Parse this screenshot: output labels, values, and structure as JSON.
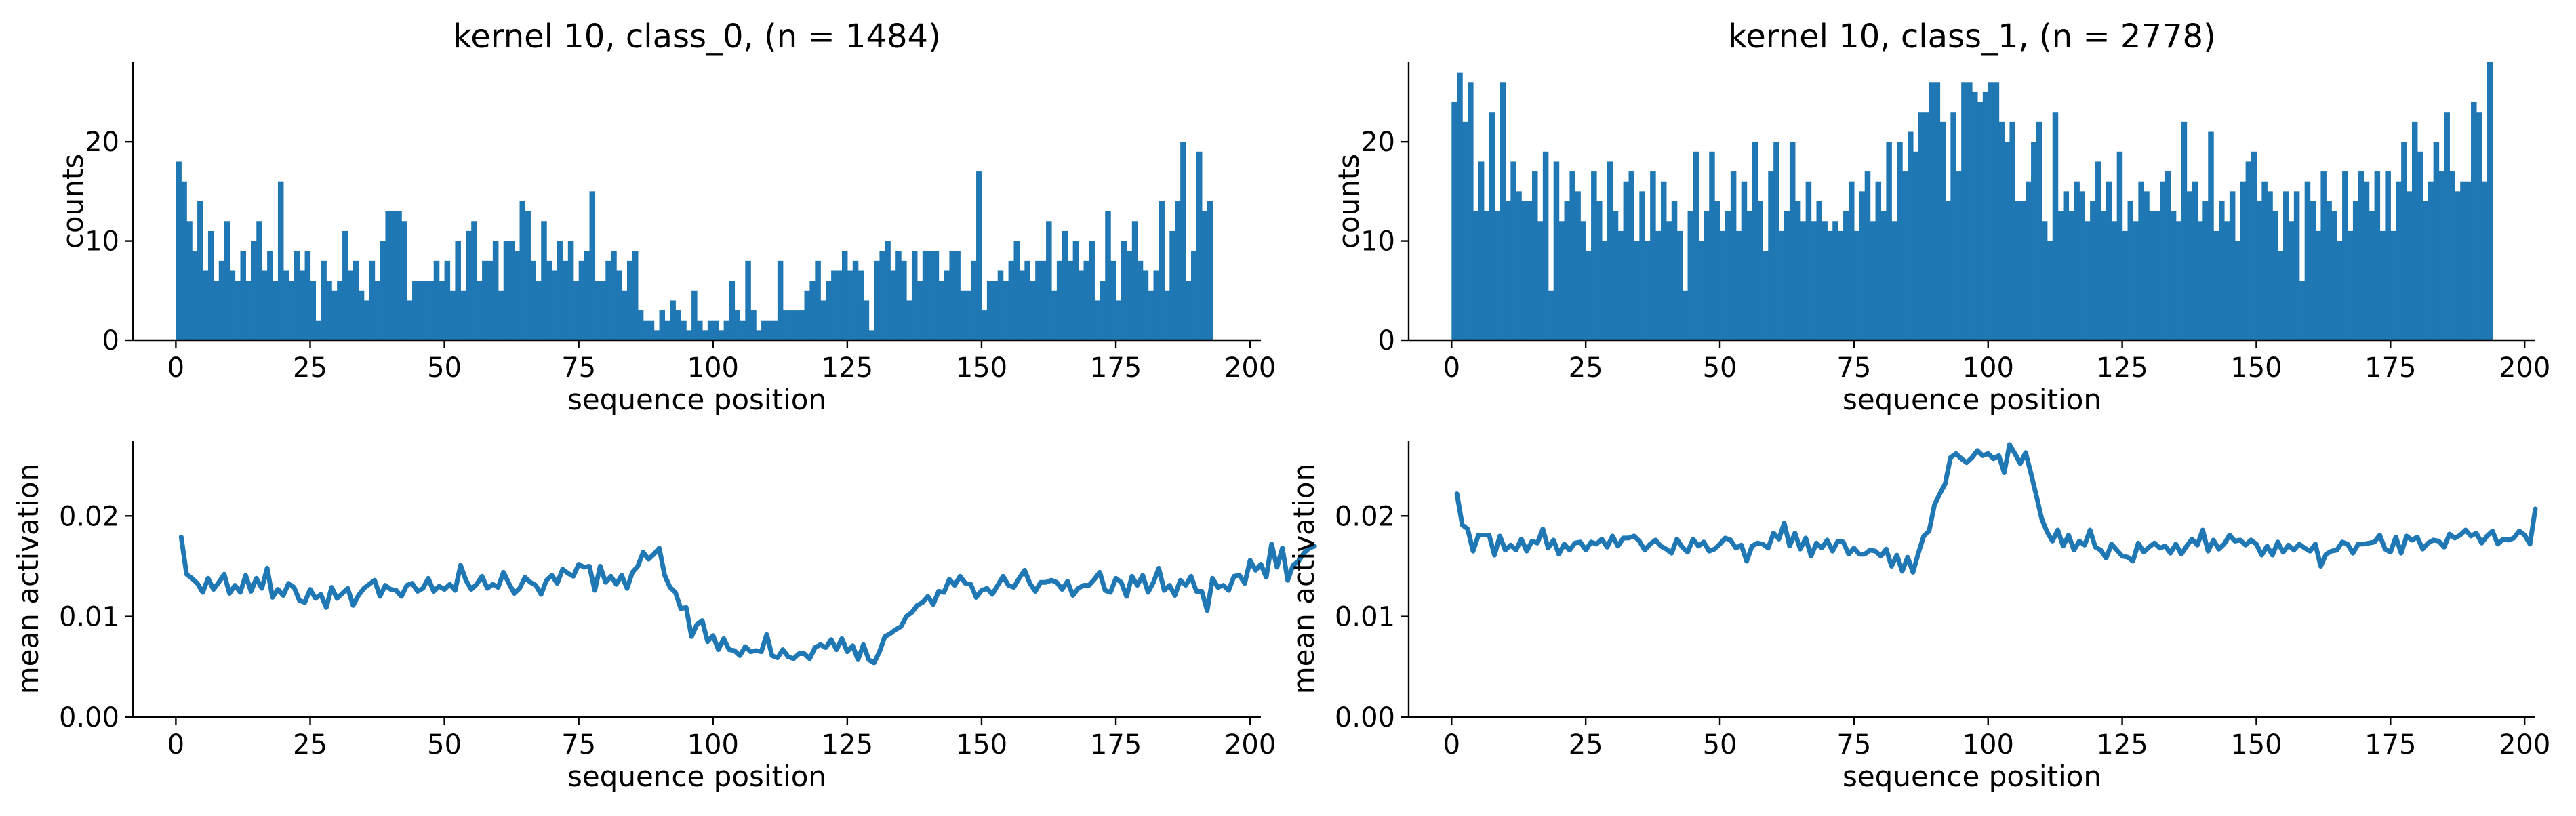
{
  "chart_data": [
    {
      "type": "bar",
      "title": "kernel 10, class_0, (n = 1484)",
      "xlabel": "sequence position",
      "ylabel": "counts",
      "xlim": [
        -8,
        202
      ],
      "ylim": [
        0,
        28
      ],
      "xticks": [
        0,
        25,
        50,
        75,
        100,
        125,
        150,
        175,
        200
      ],
      "yticks": [
        0,
        10,
        20
      ],
      "color": "#1f77b4",
      "x_start": 0,
      "values": [
        18,
        16,
        12,
        9,
        14,
        7,
        11,
        6,
        8,
        12,
        7,
        6,
        9,
        6,
        10,
        12,
        7,
        9,
        6,
        16,
        7,
        6,
        9,
        7,
        9,
        6,
        2,
        8,
        6,
        5,
        6,
        11,
        7,
        8,
        5,
        4,
        8,
        6,
        10,
        13,
        13,
        13,
        12,
        4,
        6,
        6,
        6,
        6,
        8,
        6,
        8,
        5,
        10,
        5,
        11,
        12,
        6,
        8,
        8,
        10,
        5,
        10,
        10,
        9,
        14,
        13,
        8,
        6,
        12,
        8,
        7,
        10,
        8,
        10,
        6,
        8,
        9,
        15,
        6,
        6,
        8,
        9,
        7,
        5,
        8,
        9,
        3,
        2,
        2,
        1,
        3,
        2,
        4,
        3,
        2,
        1,
        5,
        2,
        1,
        2,
        2,
        1,
        2,
        6,
        3,
        2,
        8,
        3,
        1,
        2,
        2,
        2,
        8,
        3,
        3,
        3,
        3,
        5,
        6,
        8,
        4,
        6,
        7,
        7,
        9,
        7,
        8,
        7,
        4,
        1,
        8,
        9,
        10,
        7,
        9,
        8,
        4,
        9,
        6,
        9,
        9,
        9,
        6,
        7,
        9,
        9,
        5,
        5,
        8,
        17,
        3,
        6,
        6,
        7,
        6,
        8,
        10,
        7,
        8,
        6,
        8,
        8,
        12,
        5,
        8,
        11,
        8,
        10,
        7,
        8,
        10,
        4,
        6,
        13,
        8,
        4,
        10,
        9,
        12,
        8,
        7,
        5,
        7,
        14,
        5,
        11,
        14,
        20,
        6,
        9,
        19,
        13,
        14
      ]
    },
    {
      "type": "bar",
      "title": "kernel 10, class_1, (n = 2778)",
      "xlabel": "sequence position",
      "ylabel": "counts",
      "xlim": [
        -8,
        202
      ],
      "ylim": [
        0,
        28
      ],
      "xticks": [
        0,
        25,
        50,
        75,
        100,
        125,
        150,
        175,
        200
      ],
      "yticks": [
        0,
        10,
        20
      ],
      "color": "#1f77b4",
      "x_start": 0,
      "values": [
        24,
        27,
        22,
        26,
        13,
        18,
        13,
        23,
        13,
        26,
        14,
        18,
        15,
        14,
        14,
        17,
        12,
        19,
        5,
        18,
        12,
        14,
        17,
        15,
        12,
        9,
        17,
        14,
        10,
        18,
        13,
        11,
        16,
        17,
        10,
        15,
        10,
        17,
        11,
        16,
        12,
        14,
        11,
        5,
        13,
        19,
        10,
        13,
        19,
        14,
        11,
        13,
        17,
        11,
        16,
        13,
        20,
        14,
        9,
        17,
        20,
        11,
        13,
        20,
        14,
        12,
        16,
        12,
        14,
        12,
        11,
        12,
        11,
        13,
        16,
        11,
        15,
        17,
        12,
        16,
        13,
        20,
        12,
        20,
        17,
        21,
        19,
        23,
        23,
        26,
        26,
        22,
        14,
        23,
        17,
        26,
        26,
        25,
        24,
        25,
        26,
        26,
        22,
        20,
        22,
        14,
        14,
        16,
        20,
        22,
        12,
        10,
        23,
        13,
        15,
        13,
        16,
        15,
        12,
        14,
        18,
        13,
        16,
        12,
        19,
        11,
        14,
        12,
        16,
        15,
        13,
        13,
        16,
        17,
        13,
        12,
        22,
        15,
        16,
        12,
        14,
        21,
        11,
        14,
        12,
        15,
        10,
        16,
        18,
        19,
        14,
        16,
        15,
        13,
        9,
        15,
        12,
        15,
        6,
        16,
        14,
        11,
        17,
        14,
        13,
        10,
        17,
        11,
        14,
        17,
        16,
        13,
        17,
        11,
        17,
        11,
        16,
        20,
        15,
        22,
        19,
        14,
        16,
        20,
        17,
        23,
        17,
        15,
        16,
        16,
        24,
        23,
        16,
        28
      ]
    },
    {
      "type": "line",
      "xlabel": "sequence position",
      "ylabel": "mean activation",
      "xlim": [
        -8,
        202
      ],
      "ylim": [
        0,
        0.0275
      ],
      "xticks": [
        0,
        25,
        50,
        75,
        100,
        125,
        150,
        175,
        200
      ],
      "yticks": [
        0.0,
        0.01,
        0.02
      ],
      "ytick_labels": [
        "0.00",
        "0.01",
        "0.02"
      ],
      "color": "#1f77b4",
      "x_start": 1,
      "values": [
        0.0179,
        0.0142,
        0.0138,
        0.0133,
        0.0124,
        0.0138,
        0.0127,
        0.0134,
        0.0142,
        0.0123,
        0.0131,
        0.0124,
        0.0141,
        0.0125,
        0.0138,
        0.0128,
        0.0148,
        0.0119,
        0.0127,
        0.0121,
        0.0133,
        0.0129,
        0.0116,
        0.0114,
        0.0127,
        0.0118,
        0.0122,
        0.0109,
        0.0129,
        0.0118,
        0.0123,
        0.0128,
        0.0111,
        0.0121,
        0.0128,
        0.0132,
        0.0136,
        0.012,
        0.0131,
        0.0127,
        0.0126,
        0.012,
        0.0131,
        0.0133,
        0.0125,
        0.0128,
        0.0138,
        0.0125,
        0.013,
        0.0127,
        0.0132,
        0.0126,
        0.0151,
        0.0136,
        0.0127,
        0.0132,
        0.014,
        0.0128,
        0.0132,
        0.0129,
        0.0144,
        0.0133,
        0.0123,
        0.0128,
        0.0139,
        0.0134,
        0.0131,
        0.0122,
        0.0136,
        0.0141,
        0.0133,
        0.0147,
        0.0143,
        0.014,
        0.0152,
        0.0149,
        0.015,
        0.0126,
        0.015,
        0.0134,
        0.014,
        0.0132,
        0.0141,
        0.0128,
        0.0144,
        0.015,
        0.0164,
        0.0157,
        0.0162,
        0.0168,
        0.0141,
        0.0129,
        0.0124,
        0.0108,
        0.0109,
        0.008,
        0.0092,
        0.0096,
        0.0075,
        0.0081,
        0.0067,
        0.0078,
        0.0067,
        0.0066,
        0.0061,
        0.007,
        0.0065,
        0.0066,
        0.0065,
        0.0082,
        0.0061,
        0.0059,
        0.0067,
        0.006,
        0.0058,
        0.0063,
        0.0063,
        0.0058,
        0.0069,
        0.0072,
        0.0069,
        0.0077,
        0.0067,
        0.0078,
        0.0065,
        0.0071,
        0.0057,
        0.0072,
        0.0057,
        0.0054,
        0.0065,
        0.008,
        0.0083,
        0.0087,
        0.009,
        0.01,
        0.0104,
        0.0111,
        0.0114,
        0.012,
        0.0112,
        0.0125,
        0.0124,
        0.0137,
        0.0131,
        0.014,
        0.0133,
        0.0132,
        0.0119,
        0.0126,
        0.0128,
        0.0122,
        0.0131,
        0.014,
        0.0131,
        0.0129,
        0.0138,
        0.0146,
        0.0133,
        0.0125,
        0.0134,
        0.0134,
        0.0136,
        0.0134,
        0.0127,
        0.0135,
        0.0121,
        0.0128,
        0.0131,
        0.0131,
        0.0137,
        0.0144,
        0.0126,
        0.0124,
        0.0138,
        0.0134,
        0.012,
        0.014,
        0.0131,
        0.0141,
        0.0124,
        0.0134,
        0.0148,
        0.0126,
        0.0131,
        0.0121,
        0.0136,
        0.0131,
        0.014,
        0.0125,
        0.0125,
        0.0106,
        0.0138,
        0.0129,
        0.0131,
        0.0126,
        0.014,
        0.0141,
        0.0133,
        0.0156,
        0.0146,
        0.0152,
        0.0139,
        0.0172,
        0.0149,
        0.0168,
        0.0136,
        0.0151,
        0.0155,
        0.0163,
        0.0168,
        0.017
      ]
    },
    {
      "type": "line",
      "xlabel": "sequence position",
      "ylabel": "mean activation",
      "xlim": [
        -8,
        202
      ],
      "ylim": [
        0,
        0.0275
      ],
      "xticks": [
        0,
        25,
        50,
        75,
        100,
        125,
        150,
        175,
        200
      ],
      "yticks": [
        0.0,
        0.01,
        0.02
      ],
      "ytick_labels": [
        "0.00",
        "0.01",
        "0.02"
      ],
      "color": "#1f77b4",
      "x_start": 1,
      "values": [
        0.0222,
        0.0191,
        0.0187,
        0.0165,
        0.0181,
        0.0181,
        0.0181,
        0.0161,
        0.018,
        0.0166,
        0.0171,
        0.0166,
        0.0177,
        0.0165,
        0.0175,
        0.0173,
        0.0187,
        0.0168,
        0.0176,
        0.0162,
        0.0172,
        0.0166,
        0.0173,
        0.0174,
        0.0166,
        0.0174,
        0.0172,
        0.0177,
        0.0169,
        0.018,
        0.017,
        0.0178,
        0.0178,
        0.018,
        0.0175,
        0.0166,
        0.0172,
        0.0176,
        0.017,
        0.0167,
        0.0163,
        0.0177,
        0.0169,
        0.0164,
        0.0177,
        0.017,
        0.0174,
        0.0165,
        0.0167,
        0.0172,
        0.0178,
        0.0176,
        0.0168,
        0.0171,
        0.0155,
        0.017,
        0.0173,
        0.0172,
        0.0168,
        0.0183,
        0.0177,
        0.0193,
        0.017,
        0.0183,
        0.0167,
        0.0178,
        0.016,
        0.0173,
        0.0168,
        0.0176,
        0.0165,
        0.0175,
        0.0174,
        0.0162,
        0.0168,
        0.0162,
        0.0162,
        0.0166,
        0.0165,
        0.016,
        0.0167,
        0.015,
        0.0161,
        0.0145,
        0.0159,
        0.0144,
        0.0163,
        0.018,
        0.0185,
        0.0211,
        0.0222,
        0.0232,
        0.0258,
        0.0262,
        0.0257,
        0.0253,
        0.0258,
        0.0265,
        0.026,
        0.0262,
        0.0257,
        0.026,
        0.0243,
        0.0271,
        0.0262,
        0.0252,
        0.0263,
        0.0242,
        0.022,
        0.0197,
        0.0184,
        0.0175,
        0.0186,
        0.017,
        0.0181,
        0.0166,
        0.0175,
        0.0171,
        0.0186,
        0.0169,
        0.0166,
        0.0158,
        0.0172,
        0.0166,
        0.016,
        0.0159,
        0.0155,
        0.0173,
        0.0164,
        0.0169,
        0.0173,
        0.0168,
        0.017,
        0.0163,
        0.0172,
        0.0162,
        0.017,
        0.0177,
        0.0171,
        0.0186,
        0.0165,
        0.0176,
        0.0167,
        0.0172,
        0.0181,
        0.0175,
        0.0176,
        0.0171,
        0.0176,
        0.0172,
        0.0161,
        0.017,
        0.0161,
        0.0174,
        0.0164,
        0.0171,
        0.0166,
        0.0172,
        0.0168,
        0.0165,
        0.0172,
        0.015,
        0.0162,
        0.0165,
        0.0166,
        0.0174,
        0.0172,
        0.0163,
        0.0172,
        0.0172,
        0.0173,
        0.0174,
        0.0181,
        0.0167,
        0.0164,
        0.0179,
        0.0163,
        0.018,
        0.0176,
        0.0179,
        0.0167,
        0.0173,
        0.0176,
        0.0175,
        0.0169,
        0.0182,
        0.0178,
        0.0181,
        0.0186,
        0.018,
        0.0183,
        0.0173,
        0.018,
        0.0185,
        0.0172,
        0.0177,
        0.0176,
        0.0178,
        0.0185,
        0.0181,
        0.0172,
        0.0207
      ]
    }
  ]
}
